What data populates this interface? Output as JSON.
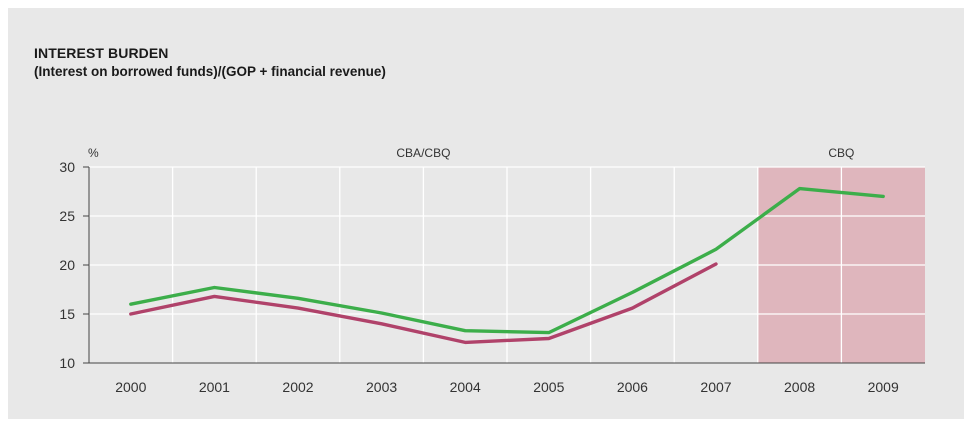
{
  "chart_data": {
    "type": "line",
    "title": "INTEREST BURDEN",
    "subtitle": "(Interest on borrowed funds)/(GOP + financial revenue)",
    "ylabel": "%",
    "ylim": [
      10,
      30
    ],
    "yticks": [
      10,
      15,
      20,
      25,
      30
    ],
    "categories": [
      "2000",
      "2001",
      "2002",
      "2003",
      "2004",
      "2005",
      "2006",
      "2007",
      "2008",
      "2009"
    ],
    "grid": true,
    "regions": [
      {
        "label": "CBA/CBQ",
        "from": "2000",
        "to": "2007",
        "shaded": false
      },
      {
        "label": "CBQ",
        "from": "2008",
        "to": "2009",
        "shaded": true,
        "color": "#dfb6bd"
      }
    ],
    "series": [
      {
        "color": "#3cae4a",
        "values": [
          16.0,
          17.7,
          16.6,
          15.1,
          13.3,
          13.1,
          17.2,
          21.6,
          27.8,
          27.0
        ]
      },
      {
        "color": "#b0426a",
        "values": [
          15.0,
          16.8,
          15.6,
          14.0,
          12.1,
          12.5,
          15.6,
          20.1,
          null,
          null
        ]
      }
    ]
  }
}
